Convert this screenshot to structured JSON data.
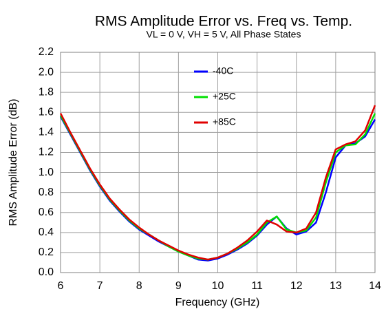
{
  "chart_data": {
    "type": "line",
    "title": "RMS Amplitude Error vs. Freq vs. Temp.",
    "subtitle": "VL = 0 V, VH = 5 V, All Phase States",
    "x_label": "Frequency (GHz)",
    "y_label": "RMS Amplitude Error (dB)",
    "x": [
      6,
      6.25,
      6.5,
      6.75,
      7,
      7.25,
      7.5,
      7.75,
      8,
      8.25,
      8.5,
      8.75,
      9,
      9.25,
      9.5,
      9.75,
      10,
      10.25,
      10.5,
      10.75,
      11,
      11.25,
      11.5,
      11.75,
      12,
      12.25,
      12.5,
      12.75,
      13,
      13.25,
      13.5,
      13.75,
      14
    ],
    "series": [
      {
        "name": "-40C",
        "color": "#0000ff",
        "values": [
          1.56,
          1.38,
          1.2,
          1.02,
          0.86,
          0.72,
          0.61,
          0.51,
          0.43,
          0.37,
          0.31,
          0.26,
          0.21,
          0.17,
          0.13,
          0.12,
          0.14,
          0.18,
          0.23,
          0.29,
          0.37,
          0.48,
          0.56,
          0.44,
          0.38,
          0.41,
          0.5,
          0.8,
          1.15,
          1.27,
          1.29,
          1.36,
          1.53
        ]
      },
      {
        "name": "+25C",
        "color": "#00e000",
        "values": [
          1.57,
          1.39,
          1.21,
          1.03,
          0.87,
          0.73,
          0.62,
          0.52,
          0.44,
          0.38,
          0.32,
          0.26,
          0.21,
          0.17,
          0.14,
          0.13,
          0.15,
          0.19,
          0.24,
          0.3,
          0.38,
          0.5,
          0.56,
          0.43,
          0.4,
          0.42,
          0.55,
          0.9,
          1.2,
          1.27,
          1.28,
          1.38,
          1.59
        ]
      },
      {
        "name": "+85C",
        "color": "#e00000",
        "values": [
          1.59,
          1.4,
          1.22,
          1.04,
          0.88,
          0.74,
          0.63,
          0.53,
          0.45,
          0.38,
          0.32,
          0.27,
          0.22,
          0.18,
          0.15,
          0.13,
          0.15,
          0.19,
          0.25,
          0.32,
          0.41,
          0.52,
          0.48,
          0.41,
          0.4,
          0.44,
          0.6,
          0.95,
          1.23,
          1.28,
          1.31,
          1.42,
          1.67
        ]
      }
    ],
    "xlim": [
      6,
      14
    ],
    "xticks": [
      6,
      7,
      8,
      9,
      10,
      11,
      12,
      13,
      14
    ],
    "ylim": [
      0,
      2.2
    ],
    "yticks": [
      {
        "value": 0,
        "label": "0.0"
      },
      0.2,
      0.4,
      0.6,
      0.8,
      {
        "value": 1,
        "label": "1.0"
      },
      1.2,
      1.4,
      1.6,
      1.8,
      {
        "value": 2,
        "label": "2.0"
      },
      2.2
    ],
    "grid": true,
    "legend": "top"
  }
}
